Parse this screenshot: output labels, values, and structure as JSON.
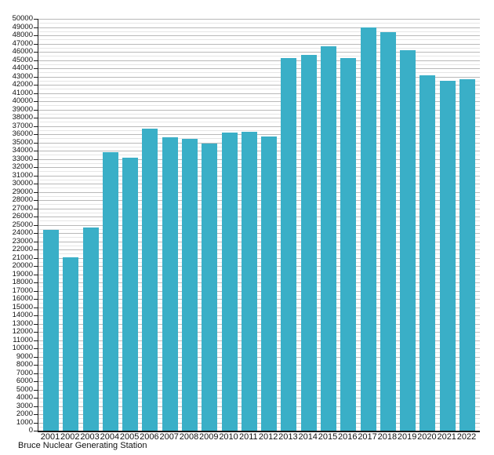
{
  "chart_data": {
    "type": "bar",
    "title": "Bruce Nuclear Generating Station",
    "categories": [
      "2001",
      "2002",
      "2003",
      "2004",
      "2005",
      "2006",
      "2007",
      "2008",
      "2009",
      "2010",
      "2011",
      "2012",
      "2013",
      "2014",
      "2015",
      "2016",
      "2017",
      "2018",
      "2019",
      "2020",
      "2021",
      "2022"
    ],
    "values": [
      24383,
      21021,
      24648,
      33788,
      33145,
      36636,
      35608,
      35410,
      34847,
      36173,
      36243,
      35671,
      45253,
      45654,
      46663,
      45285,
      48920,
      48389,
      46187,
      43122,
      42515,
      42676
    ],
    "xlabel": "",
    "ylabel": "",
    "ylim": [
      0,
      50000
    ],
    "y_major_step": 1000,
    "y_minor_step": 500,
    "grid": "on",
    "legend_position": "none",
    "y_tick_labels": [
      "0",
      "1000",
      "2000",
      "3000",
      "4000",
      "5000",
      "6000",
      "7000",
      "8000",
      "9000",
      "10000",
      "11000",
      "12000",
      "13000",
      "14000",
      "15000",
      "16000",
      "17000",
      "18000",
      "19000",
      "20000",
      "21000",
      "22000",
      "23000",
      "24000",
      "25000",
      "26000",
      "27000",
      "28000",
      "29000",
      "30000",
      "31000",
      "32000",
      "33000",
      "34000",
      "35000",
      "36000",
      "37000",
      "38000",
      "39000",
      "40000",
      "41000",
      "42000",
      "43000",
      "44000",
      "45000",
      "46000",
      "47000",
      "48000",
      "49000",
      "50000"
    ],
    "colors": {
      "bar": "#3aafc7",
      "major_grid": "#b9b9b9",
      "minor_grid": "#e6e6e6",
      "axis": "#1a1a1a",
      "text": "#111111"
    }
  }
}
